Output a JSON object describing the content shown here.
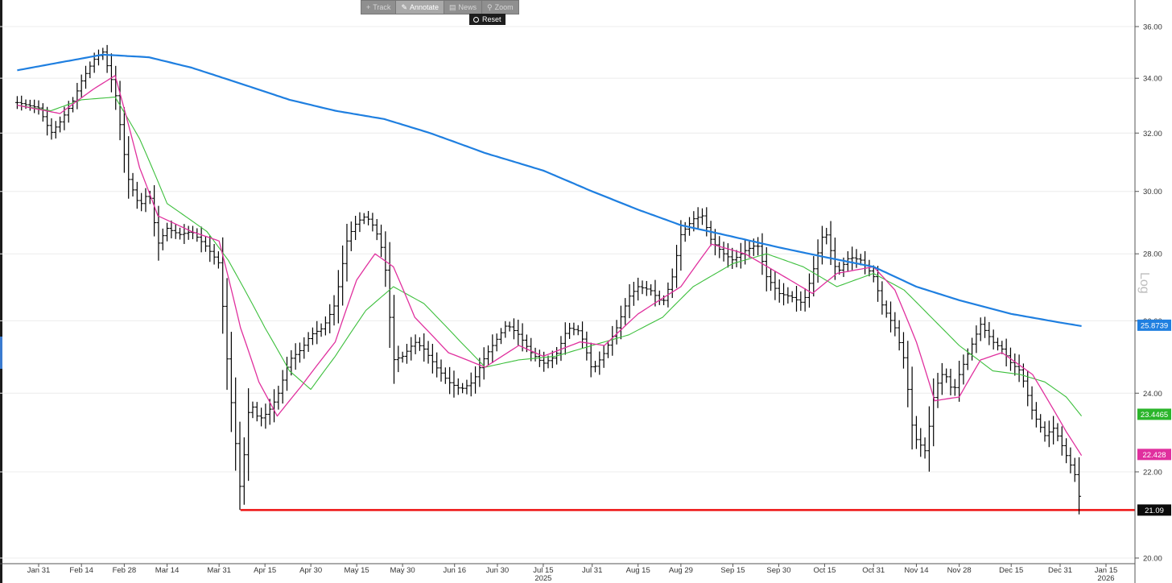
{
  "toolbar": {
    "buttons": [
      {
        "icon": "plus-icon",
        "glyph": "+",
        "label": "Track",
        "active": false
      },
      {
        "icon": "pencil-icon",
        "glyph": "✎",
        "label": "Annotate",
        "active": true
      },
      {
        "icon": "news-icon",
        "glyph": "▤",
        "label": "News",
        "active": false
      },
      {
        "icon": "zoom-icon",
        "glyph": "⚲",
        "label": "Zoom",
        "active": false
      }
    ],
    "reset_label": "Reset"
  },
  "axis_mode_label": "Log",
  "chart_data": {
    "type": "ohlc",
    "yscale": "log",
    "ylim": [
      19.95,
      37.2
    ],
    "y_ticks": [
      "36.00",
      "34.00",
      "32.00",
      "30.00",
      "28.00",
      "26.00",
      "24.00",
      "22.00",
      "20.00"
    ],
    "x_ticks": [
      "Jan 31",
      "Feb 14",
      "Feb 28",
      "Mar 14",
      "Mar 31",
      "Apr 15",
      "Apr 30",
      "May 15",
      "May 30",
      "Jun 16",
      "Jun 30",
      "Jul 15",
      "Jul 31",
      "Aug 15",
      "Aug 29",
      "Sep 15",
      "Sep 30",
      "Oct 15",
      "Oct 31",
      "Nov 14",
      "Nov 28",
      "Dec 15",
      "Dec 31",
      "Jan 15"
    ],
    "x_sublabels": [
      {
        "under": "Jul 15",
        "text": "2025"
      },
      {
        "under": "Jan 15",
        "text": "2026"
      }
    ],
    "colors": {
      "price_bars": "#000000",
      "ma_long": "#1f7fe0",
      "ma_mid": "#3cbf3c",
      "ma_short": "#e0309e",
      "support": "#ee1111"
    },
    "series": [
      {
        "role": "price",
        "anchors": [
          [
            "Jan 24",
            33.1
          ],
          [
            "Jan 31",
            32.9
          ],
          [
            "Feb 4",
            32.0
          ],
          [
            "Feb 7",
            32.4
          ],
          [
            "Feb 11",
            33.1
          ],
          [
            "Feb 14",
            33.9
          ],
          [
            "Feb 18",
            34.7
          ],
          [
            "Feb 21",
            35.0
          ],
          [
            "Feb 25",
            33.5
          ],
          [
            "Mar 1",
            30.5
          ],
          [
            "Mar 5",
            29.5
          ],
          [
            "Mar 8",
            30.0
          ],
          [
            "Mar 11",
            28.3
          ],
          [
            "Mar 14",
            28.8
          ],
          [
            "Mar 18",
            28.6
          ],
          [
            "Mar 22",
            28.7
          ],
          [
            "Mar 27",
            28.2
          ],
          [
            "Mar 31",
            27.7
          ],
          [
            "Apr 3",
            24.5
          ],
          [
            "Apr 7",
            21.5
          ],
          [
            "Apr 10",
            23.8
          ],
          [
            "Apr 13",
            23.3
          ],
          [
            "Apr 16",
            23.5
          ],
          [
            "Apr 19",
            23.9
          ],
          [
            "Apr 23",
            24.9
          ],
          [
            "Apr 27",
            25.2
          ],
          [
            "Apr 30",
            25.6
          ],
          [
            "May 4",
            25.8
          ],
          [
            "May 8",
            26.5
          ],
          [
            "May 12",
            28.5
          ],
          [
            "May 15",
            29.0
          ],
          [
            "May 18",
            29.2
          ],
          [
            "May 21",
            28.8
          ],
          [
            "May 24",
            27.9
          ],
          [
            "May 27",
            24.9
          ],
          [
            "May 30",
            25.0
          ],
          [
            "Jun 3",
            25.4
          ],
          [
            "Jun 6",
            25.2
          ],
          [
            "Jun 10",
            24.7
          ],
          [
            "Jun 14",
            24.3
          ],
          [
            "Jun 18",
            24.1
          ],
          [
            "Jun 22",
            24.3
          ],
          [
            "Jun 26",
            25.0
          ],
          [
            "Jun 30",
            25.5
          ],
          [
            "Jul 3",
            25.9
          ],
          [
            "Jul 7",
            25.6
          ],
          [
            "Jul 11",
            25.1
          ],
          [
            "Jul 15",
            24.8
          ],
          [
            "Jul 19",
            25.0
          ],
          [
            "Jul 23",
            25.8
          ],
          [
            "Jul 27",
            25.7
          ],
          [
            "Jul 31",
            24.6
          ],
          [
            "Aug 4",
            25.1
          ],
          [
            "Aug 8",
            25.8
          ],
          [
            "Aug 12",
            26.7
          ],
          [
            "Aug 15",
            27.0
          ],
          [
            "Aug 19",
            26.9
          ],
          [
            "Aug 23",
            26.5
          ],
          [
            "Aug 26",
            27.2
          ],
          [
            "Aug 29",
            28.6
          ],
          [
            "Sep 2",
            29.1
          ],
          [
            "Sep 5",
            29.2
          ],
          [
            "Sep 8",
            28.4
          ],
          [
            "Sep 12",
            28.0
          ],
          [
            "Sep 15",
            27.8
          ],
          [
            "Sep 19",
            28.1
          ],
          [
            "Sep 23",
            28.3
          ],
          [
            "Sep 26",
            27.3
          ],
          [
            "Sep 30",
            26.8
          ],
          [
            "Oct 4",
            26.7
          ],
          [
            "Oct 8",
            26.5
          ],
          [
            "Oct 11",
            27.4
          ],
          [
            "Oct 15",
            28.8
          ],
          [
            "Oct 19",
            27.4
          ],
          [
            "Oct 23",
            27.9
          ],
          [
            "Oct 27",
            27.8
          ],
          [
            "Oct 31",
            27.3
          ],
          [
            "Nov 3",
            26.4
          ],
          [
            "Nov 7",
            25.8
          ],
          [
            "Nov 10",
            24.9
          ],
          [
            "Nov 13",
            22.9
          ],
          [
            "Nov 17",
            22.5
          ],
          [
            "Nov 20",
            24.1
          ],
          [
            "Nov 23",
            24.6
          ],
          [
            "Nov 26",
            24.0
          ],
          [
            "Nov 28",
            24.5
          ],
          [
            "Dec 2",
            25.3
          ],
          [
            "Dec 5",
            25.9
          ],
          [
            "Dec 9",
            25.4
          ],
          [
            "Dec 12",
            25.2
          ],
          [
            "Dec 15",
            24.8
          ],
          [
            "Dec 18",
            24.6
          ],
          [
            "Dec 22",
            23.5
          ],
          [
            "Dec 26",
            22.9
          ],
          [
            "Dec 29",
            23.1
          ],
          [
            "Jan 2",
            22.4
          ],
          [
            "Jan 5",
            21.9
          ],
          [
            "Jan 7",
            21.09
          ]
        ]
      },
      {
        "role": "ma_long",
        "last_value": "25.8739",
        "anchors": [
          [
            "Jan 24",
            34.3
          ],
          [
            "Feb 7",
            34.6
          ],
          [
            "Feb 21",
            34.9
          ],
          [
            "Mar 8",
            34.8
          ],
          [
            "Mar 22",
            34.4
          ],
          [
            "Apr 7",
            33.8
          ],
          [
            "Apr 23",
            33.2
          ],
          [
            "May 8",
            32.8
          ],
          [
            "May 24",
            32.5
          ],
          [
            "Jun 8",
            32.0
          ],
          [
            "Jun 26",
            31.3
          ],
          [
            "Jul 15",
            30.7
          ],
          [
            "Jul 31",
            30.0
          ],
          [
            "Aug 15",
            29.4
          ],
          [
            "Aug 29",
            28.9
          ],
          [
            "Sep 12",
            28.6
          ],
          [
            "Sep 30",
            28.2
          ],
          [
            "Oct 15",
            27.9
          ],
          [
            "Oct 31",
            27.6
          ],
          [
            "Nov 14",
            27.0
          ],
          [
            "Nov 28",
            26.6
          ],
          [
            "Dec 15",
            26.2
          ],
          [
            "Dec 31",
            25.95
          ],
          [
            "Jan 7",
            25.85
          ]
        ]
      },
      {
        "role": "ma_mid",
        "last_value": "23.4465",
        "anchors": [
          [
            "Jan 24",
            33.0
          ],
          [
            "Feb 4",
            32.8
          ],
          [
            "Feb 14",
            33.2
          ],
          [
            "Feb 25",
            33.3
          ],
          [
            "Mar 5",
            31.8
          ],
          [
            "Mar 14",
            29.6
          ],
          [
            "Mar 27",
            28.7
          ],
          [
            "Apr 3",
            27.8
          ],
          [
            "Apr 15",
            25.8
          ],
          [
            "Apr 23",
            24.6
          ],
          [
            "Apr 30",
            24.1
          ],
          [
            "May 8",
            25.0
          ],
          [
            "May 18",
            26.3
          ],
          [
            "May 27",
            27.0
          ],
          [
            "Jun 6",
            26.5
          ],
          [
            "Jun 18",
            25.4
          ],
          [
            "Jun 26",
            24.7
          ],
          [
            "Jul 7",
            24.9
          ],
          [
            "Jul 19",
            25.0
          ],
          [
            "Jul 31",
            25.3
          ],
          [
            "Aug 12",
            25.6
          ],
          [
            "Aug 23",
            26.1
          ],
          [
            "Sep 2",
            27.0
          ],
          [
            "Sep 15",
            27.7
          ],
          [
            "Sep 26",
            28.0
          ],
          [
            "Oct 8",
            27.6
          ],
          [
            "Oct 19",
            27.0
          ],
          [
            "Oct 31",
            27.4
          ],
          [
            "Nov 10",
            26.9
          ],
          [
            "Nov 20",
            26.0
          ],
          [
            "Nov 28",
            25.3
          ],
          [
            "Dec 9",
            24.6
          ],
          [
            "Dec 18",
            24.5
          ],
          [
            "Dec 26",
            24.3
          ],
          [
            "Jan 2",
            23.9
          ],
          [
            "Jan 7",
            23.4
          ]
        ]
      },
      {
        "role": "ma_short",
        "last_value": "22.428",
        "anchors": [
          [
            "Jan 24",
            33.0
          ],
          [
            "Feb 7",
            32.7
          ],
          [
            "Feb 18",
            33.6
          ],
          [
            "Feb 25",
            34.1
          ],
          [
            "Mar 5",
            30.8
          ],
          [
            "Mar 11",
            29.2
          ],
          [
            "Mar 22",
            28.7
          ],
          [
            "Mar 31",
            28.4
          ],
          [
            "Apr 7",
            25.8
          ],
          [
            "Apr 13",
            24.3
          ],
          [
            "Apr 19",
            23.4
          ],
          [
            "Apr 27",
            24.2
          ],
          [
            "May 8",
            25.4
          ],
          [
            "May 15",
            27.2
          ],
          [
            "May 21",
            28.0
          ],
          [
            "May 27",
            27.6
          ],
          [
            "Jun 3",
            26.1
          ],
          [
            "Jun 14",
            25.1
          ],
          [
            "Jun 26",
            24.7
          ],
          [
            "Jul 7",
            25.3
          ],
          [
            "Jul 15",
            25.0
          ],
          [
            "Jul 27",
            25.4
          ],
          [
            "Aug 4",
            25.3
          ],
          [
            "Aug 15",
            26.2
          ],
          [
            "Aug 29",
            27.0
          ],
          [
            "Sep 8",
            28.3
          ],
          [
            "Sep 19",
            28.0
          ],
          [
            "Sep 30",
            27.4
          ],
          [
            "Oct 11",
            26.8
          ],
          [
            "Oct 19",
            27.4
          ],
          [
            "Oct 31",
            27.6
          ],
          [
            "Nov 7",
            26.9
          ],
          [
            "Nov 14",
            25.4
          ],
          [
            "Nov 20",
            23.8
          ],
          [
            "Nov 28",
            23.9
          ],
          [
            "Dec 5",
            24.9
          ],
          [
            "Dec 12",
            25.1
          ],
          [
            "Dec 22",
            24.5
          ],
          [
            "Jan 2",
            23.0
          ],
          [
            "Jan 7",
            22.4
          ]
        ]
      }
    ],
    "support_level": {
      "value": 21.09,
      "label": "21.09",
      "from": "Apr 7",
      "to": "Jan 7"
    },
    "value_tags": [
      {
        "text": "25.8739",
        "value": 25.8739,
        "color": "#1f7fe0"
      },
      {
        "text": "23.4465",
        "value": 23.4465,
        "color": "#2bb52b"
      },
      {
        "text": "22.428",
        "value": 22.428,
        "color": "#e0309e"
      },
      {
        "text": "21.09",
        "value": 21.09,
        "color": "#0b0b0b"
      }
    ]
  }
}
